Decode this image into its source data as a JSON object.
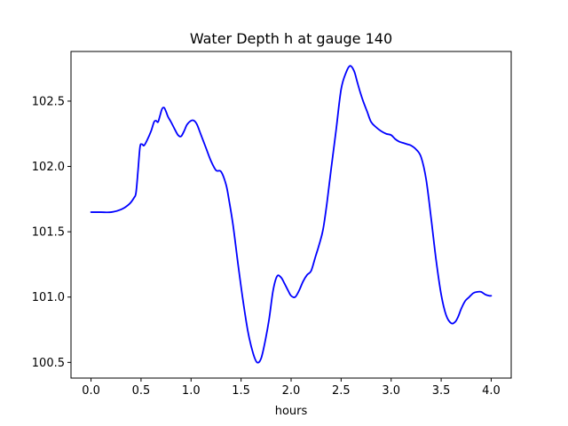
{
  "chart_data": {
    "type": "line",
    "title": "Water Depth h at gauge 140",
    "xlabel": "hours",
    "ylabel": "",
    "xlim": [
      -0.2,
      4.2
    ],
    "ylim": [
      100.38,
      102.88
    ],
    "xticks": [
      0.0,
      0.5,
      1.0,
      1.5,
      2.0,
      2.5,
      3.0,
      3.5,
      4.0
    ],
    "xtick_labels": [
      "0.0",
      "0.5",
      "1.0",
      "1.5",
      "2.0",
      "2.5",
      "3.0",
      "3.5",
      "4.0"
    ],
    "yticks": [
      100.5,
      101.0,
      101.5,
      102.0,
      102.5
    ],
    "ytick_labels": [
      "100.5",
      "101.0",
      "101.5",
      "102.0",
      "102.5"
    ],
    "grid": false,
    "legend": "none",
    "series": [
      {
        "color": "#0000ff",
        "x": [
          0.0,
          0.1,
          0.2,
          0.3,
          0.38,
          0.43,
          0.45,
          0.47,
          0.49,
          0.51,
          0.53,
          0.56,
          0.6,
          0.63,
          0.65,
          0.67,
          0.69,
          0.71,
          0.73,
          0.75,
          0.77,
          0.8,
          0.84,
          0.87,
          0.9,
          0.93,
          0.96,
          1.0,
          1.03,
          1.06,
          1.1,
          1.15,
          1.2,
          1.25,
          1.3,
          1.35,
          1.38,
          1.42,
          1.47,
          1.52,
          1.57,
          1.62,
          1.66,
          1.7,
          1.74,
          1.78,
          1.82,
          1.86,
          1.9,
          1.93,
          1.97,
          2.0,
          2.04,
          2.08,
          2.12,
          2.16,
          2.2,
          2.24,
          2.28,
          2.32,
          2.36,
          2.4,
          2.45,
          2.5,
          2.55,
          2.59,
          2.63,
          2.66,
          2.69,
          2.72,
          2.76,
          2.8,
          2.85,
          2.9,
          2.95,
          3.0,
          3.04,
          3.08,
          3.12,
          3.16,
          3.2,
          3.25,
          3.3,
          3.35,
          3.4,
          3.45,
          3.5,
          3.55,
          3.6,
          3.64,
          3.67,
          3.7,
          3.74,
          3.78,
          3.82,
          3.86,
          3.9,
          3.94,
          3.98,
          4.0
        ],
        "y": [
          101.65,
          101.65,
          101.65,
          101.67,
          101.71,
          101.76,
          101.8,
          101.97,
          102.15,
          102.17,
          102.16,
          102.2,
          102.27,
          102.34,
          102.35,
          102.34,
          102.39,
          102.44,
          102.45,
          102.42,
          102.38,
          102.34,
          102.28,
          102.24,
          102.23,
          102.27,
          102.32,
          102.35,
          102.35,
          102.32,
          102.24,
          102.14,
          102.04,
          101.97,
          101.96,
          101.86,
          101.74,
          101.55,
          101.25,
          100.97,
          100.73,
          100.57,
          100.5,
          100.53,
          100.66,
          100.83,
          101.05,
          101.16,
          101.15,
          101.11,
          101.05,
          101.01,
          101.0,
          101.05,
          101.12,
          101.17,
          101.2,
          101.3,
          101.4,
          101.52,
          101.73,
          101.98,
          102.28,
          102.59,
          102.72,
          102.77,
          102.73,
          102.65,
          102.57,
          102.5,
          102.42,
          102.34,
          102.3,
          102.27,
          102.25,
          102.24,
          102.21,
          102.19,
          102.18,
          102.17,
          102.16,
          102.13,
          102.07,
          101.9,
          101.6,
          101.28,
          101.02,
          100.86,
          100.8,
          100.81,
          100.85,
          100.91,
          100.97,
          101.0,
          101.03,
          101.04,
          101.04,
          101.02,
          101.01,
          101.01
        ]
      }
    ]
  }
}
